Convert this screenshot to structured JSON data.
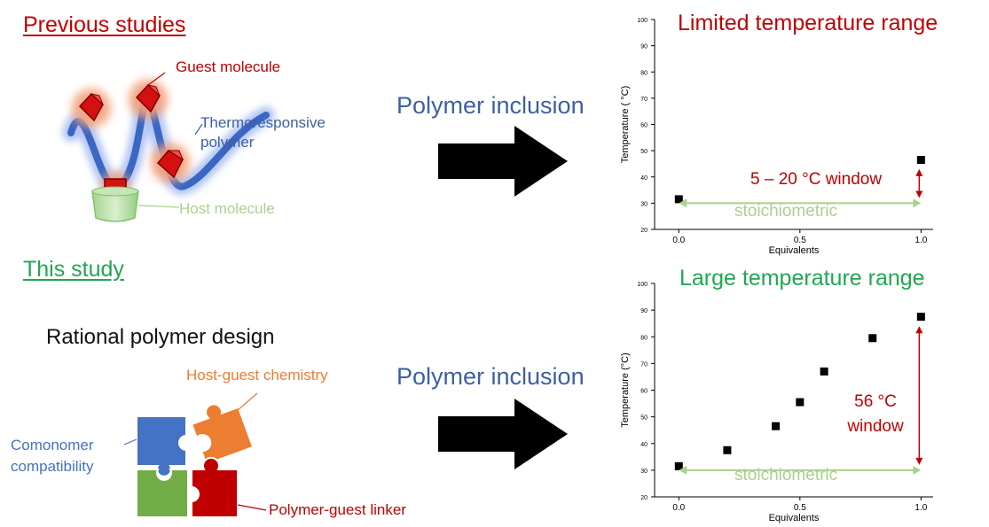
{
  "colors": {
    "red": "#c00000",
    "green": "#1fa84f",
    "blue": "#3d5fa5",
    "orange": "#ed7d31",
    "lightgreen": "#a9d18e",
    "light_arrow": "#a9d18e"
  },
  "top": {
    "section_title": "Previous studies",
    "labels": {
      "guest": "Guest molecule",
      "polymer": "Thermoresponsive polymer",
      "host": "Host molecule"
    },
    "arrow_label": "Polymer inclusion",
    "chart_title": "Limited temperature range",
    "window_label": "5 – 20 °C window",
    "stoich_label": "stoichiometric"
  },
  "bottom": {
    "section_title": "This study",
    "design_title": "Rational polymer design",
    "labels": {
      "host_guest": "Host-guest chemistry",
      "comonomer": "Comonomer compatibility",
      "linker": "Polymer-guest linker"
    },
    "arrow_label": "Polymer inclusion",
    "chart_title": "Large temperature range",
    "window_label": "56 °C window",
    "stoich_label": "stoichiometric"
  },
  "chart_data": [
    {
      "type": "scatter",
      "title": "Limited temperature range",
      "xlabel": "Equivalents",
      "ylabel": "Temperature ( °C)",
      "xlim": [
        -0.1,
        1.05
      ],
      "ylim": [
        20,
        100
      ],
      "xticks": [
        "0.0",
        "0.5",
        "1.0"
      ],
      "xtick_values": [
        0,
        0.5,
        1.0
      ],
      "yticks": [
        20,
        30,
        40,
        50,
        60,
        70,
        80,
        90,
        100
      ],
      "x": [
        0.0,
        1.0
      ],
      "y": [
        31.5,
        46.5
      ],
      "annotations": [
        "5 – 20 °C window",
        "stoichiometric"
      ]
    },
    {
      "type": "scatter",
      "title": "Large temperature range",
      "xlabel": "Equivalents",
      "ylabel": "Temperature (°C)",
      "xlim": [
        -0.1,
        1.05
      ],
      "ylim": [
        20,
        100
      ],
      "xticks": [
        "0.0",
        "0.5",
        "1.0"
      ],
      "xtick_values": [
        0,
        0.5,
        1.0
      ],
      "yticks": [
        20,
        30,
        40,
        50,
        60,
        70,
        80,
        90,
        100
      ],
      "x": [
        0.0,
        0.2,
        0.4,
        0.5,
        0.6,
        0.8,
        1.0
      ],
      "y": [
        31.5,
        37.5,
        46.5,
        55.5,
        67.0,
        79.5,
        87.5
      ],
      "annotations": [
        "56 °C window",
        "stoichiometric"
      ]
    }
  ]
}
